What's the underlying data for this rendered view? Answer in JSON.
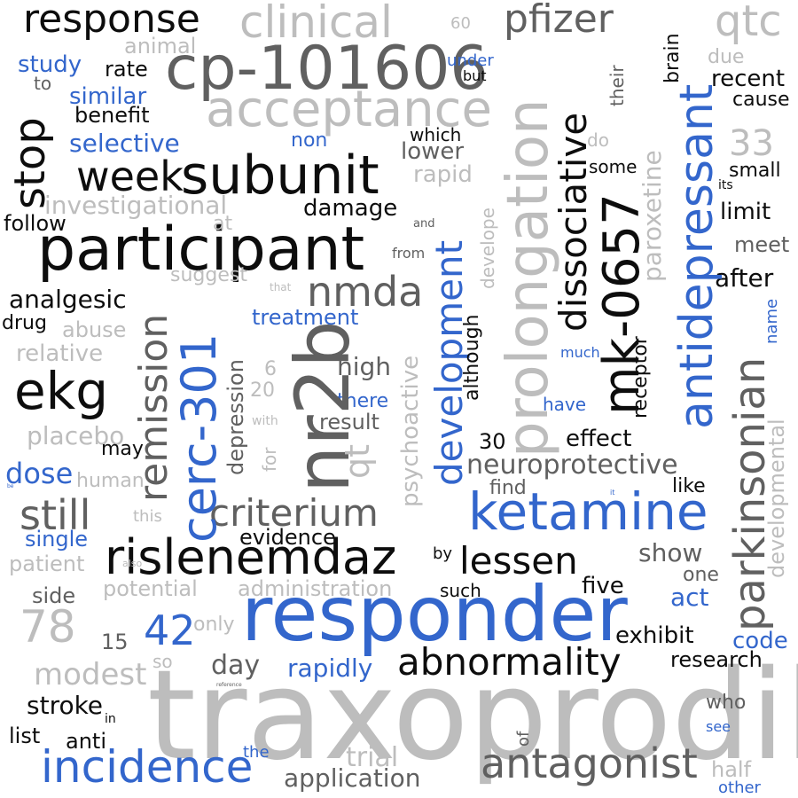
{
  "palette": {
    "black": "#0d0d0d",
    "dark_gray": "#606060",
    "light_gray": "#bdbdbd",
    "blue": "#3366cc",
    "background": "#ffffff"
  },
  "words": {
    "traxoprodil": "traxoprodil",
    "responder": "responder",
    "participant": "participant",
    "nr2b": "nr2b",
    "cp101606": "cp-101606",
    "prolongation": "prolongation",
    "ketamine": "ketamine",
    "rislenemdaz": "rislenemdaz",
    "subunit": "subunit",
    "acceptance": "acceptance",
    "mk0657": "mk-0657",
    "antidepressant": "antidepressant",
    "ekg": "ekg",
    "response": "response",
    "clinical": "clinical",
    "pfizer": "pfizer",
    "qtc": "qtc",
    "cerc301": "cerc-301",
    "dissociative": "dissociative",
    "parkinsonian": "parkinsonian",
    "incidence": "incidence",
    "antagonist": "antagonist",
    "abnormality": "abnormality",
    "remission": "remission",
    "development": "development",
    "criterium": "criterium",
    "week": "week",
    "stop": "stop",
    "nmda": "nmda",
    "lessen": "lessen",
    "still": "still",
    "n78": "78",
    "n42": "42",
    "neuroprotective": "neuroprotective",
    "qt": "qt",
    "paroxetine": "paroxetine",
    "n33": "33",
    "psychoactive": "psychoactive",
    "modest": "modest",
    "investigational": "investigational",
    "dose": "dose",
    "effect": "effect",
    "exhibit": "exhibit",
    "developmental": "developmental",
    "depression": "depression",
    "high": "high",
    "application": "application",
    "rapidly": "rapidly",
    "day": "day",
    "stroke": "stroke",
    "trial": "trial",
    "evidence": "evidence",
    "damage": "damage",
    "show": "show",
    "treatment": "treatment",
    "analgesic": "analgesic",
    "placebo": "placebo",
    "selective": "selective",
    "research": "research",
    "potential": "potential",
    "administration": "administration",
    "relative": "relative",
    "benefit": "benefit",
    "recent": "recent",
    "limit": "limit",
    "after": "after",
    "five": "five",
    "act": "act",
    "code": "code",
    "result": "result",
    "lower": "lower",
    "rapid": "rapid",
    "study": "study",
    "similar": "similar",
    "rate": "rate",
    "follow": "follow",
    "drug": "drug",
    "abuse": "abuse",
    "single": "single",
    "patient": "patient",
    "side": "side",
    "human": "human",
    "animal": "animal",
    "suggest": "suggest",
    "receptor": "receptor",
    "although": "although",
    "develope": "develope",
    "brain": "brain",
    "cause": "cause",
    "meet": "meet",
    "small": "small",
    "some": "some",
    "like": "like",
    "find": "find",
    "one": "one",
    "half": "half",
    "who": "who",
    "see": "see",
    "other": "other",
    "name": "name",
    "due": "due",
    "its": "its",
    "do": "do",
    "their": "their",
    "which": "which",
    "non": "non",
    "under": "under",
    "but": "but",
    "to": "to",
    "n60": "60",
    "at": "at",
    "and": "and",
    "from": "from",
    "that": "that",
    "n6": "6",
    "n20": "20",
    "with": "with",
    "for": "for",
    "there": "there",
    "have": "have",
    "much": "much",
    "n30": "30",
    "may": "may",
    "this": "this",
    "also": "also",
    "only": "only",
    "n15": "15",
    "so": "so",
    "in": "in",
    "list": "list",
    "anti": "anti",
    "the": "the",
    "of": "of",
    "such": "such",
    "by": "by",
    "be": "be",
    "it": "it",
    "reference": "reference"
  }
}
